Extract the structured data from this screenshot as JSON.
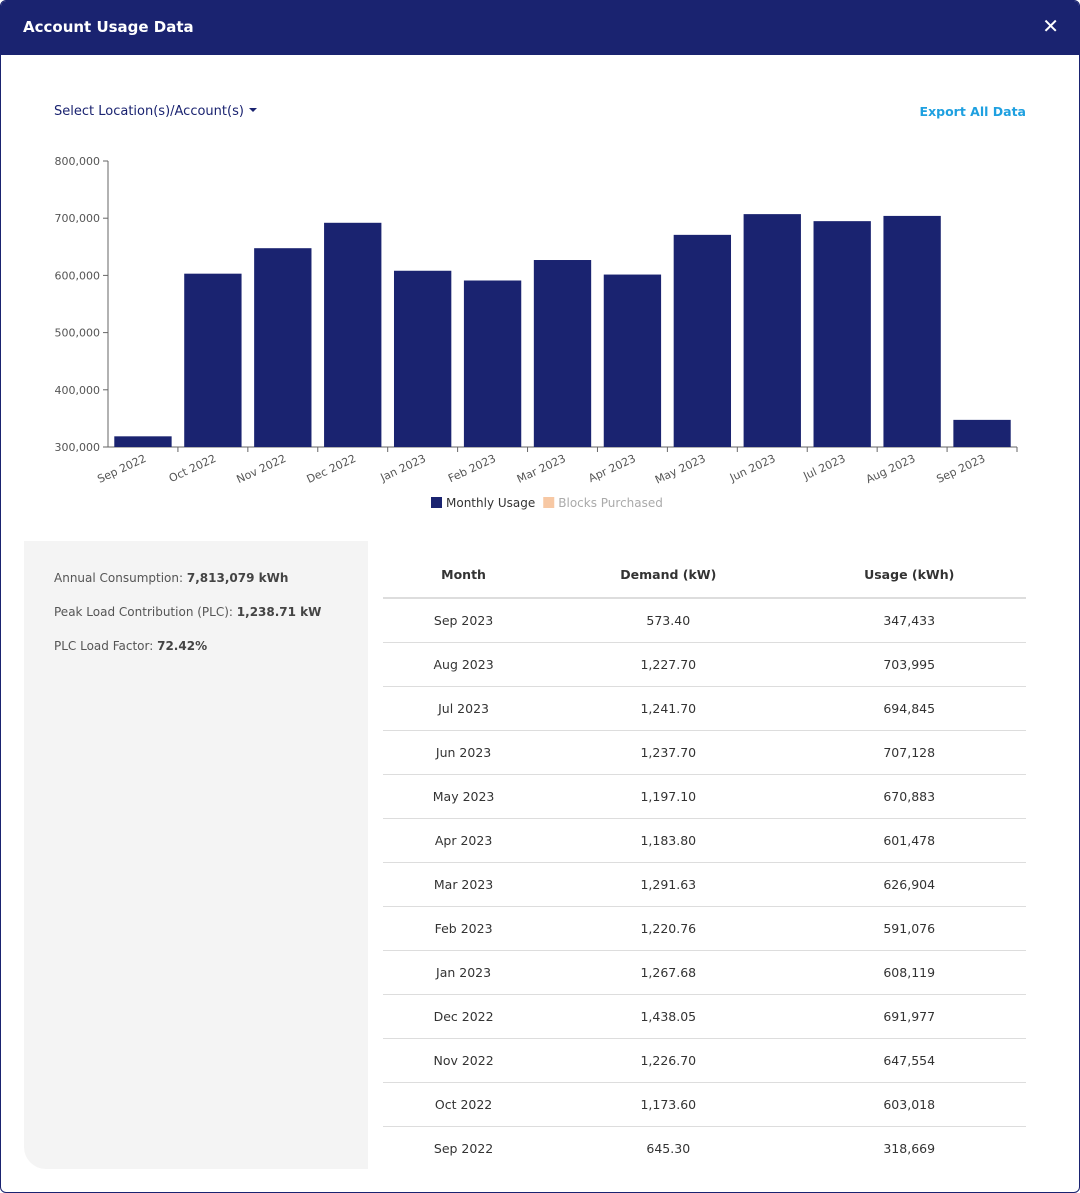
{
  "header": {
    "title": "Account Usage Data",
    "close": "✕"
  },
  "controls": {
    "select": "Select Location(s)/Account(s)",
    "export": "Export All Data"
  },
  "chart_data": {
    "type": "bar",
    "categories": [
      "Sep 2022",
      "Oct 2022",
      "Nov 2022",
      "Dec 2022",
      "Jan 2023",
      "Feb 2023",
      "Mar 2023",
      "Apr 2023",
      "May 2023",
      "Jun 2023",
      "Jul 2023",
      "Aug 2023",
      "Sep 2023"
    ],
    "series": [
      {
        "name": "Monthly Usage",
        "color": "#1a2370",
        "values": [
          318669,
          603018,
          647554,
          691977,
          608119,
          591076,
          626904,
          601478,
          670883,
          707128,
          694845,
          703995,
          347433
        ]
      },
      {
        "name": "Blocks Purchased",
        "color": "#f7c8a4",
        "hidden": true,
        "values": [
          null,
          null,
          null,
          null,
          null,
          null,
          null,
          null,
          null,
          null,
          null,
          null,
          null
        ]
      }
    ],
    "ylim": [
      300000,
      800000
    ],
    "yticks": [
      {
        "value": 300000,
        "label": "300,000"
      },
      {
        "value": 400000,
        "label": "400,000"
      },
      {
        "value": 500000,
        "label": "500,000"
      },
      {
        "value": 600000,
        "label": "600,000"
      },
      {
        "value": 700000,
        "label": "700,000"
      },
      {
        "value": 800000,
        "label": "800,000"
      }
    ],
    "grid": false,
    "legend": "bottom"
  },
  "summary": [
    {
      "label": "Annual Consumption:",
      "value": "7,813,079 kWh"
    },
    {
      "label": "Peak Load Contribution (PLC):",
      "value": "1,238.71 kW"
    },
    {
      "label": "PLC Load Factor:",
      "value": "72.42%"
    }
  ],
  "table": {
    "columns": [
      "Month",
      "Demand (kW)",
      "Usage (kWh)"
    ],
    "rows": [
      [
        "Sep 2023",
        "573.40",
        "347,433"
      ],
      [
        "Aug 2023",
        "1,227.70",
        "703,995"
      ],
      [
        "Jul 2023",
        "1,241.70",
        "694,845"
      ],
      [
        "Jun 2023",
        "1,237.70",
        "707,128"
      ],
      [
        "May 2023",
        "1,197.10",
        "670,883"
      ],
      [
        "Apr 2023",
        "1,183.80",
        "601,478"
      ],
      [
        "Mar 2023",
        "1,291.63",
        "626,904"
      ],
      [
        "Feb 2023",
        "1,220.76",
        "591,076"
      ],
      [
        "Jan 2023",
        "1,267.68",
        "608,119"
      ],
      [
        "Dec 2022",
        "1,438.05",
        "691,977"
      ],
      [
        "Nov 2022",
        "1,226.70",
        "647,554"
      ],
      [
        "Oct 2022",
        "1,173.60",
        "603,018"
      ],
      [
        "Sep 2022",
        "645.30",
        "318,669"
      ]
    ]
  }
}
